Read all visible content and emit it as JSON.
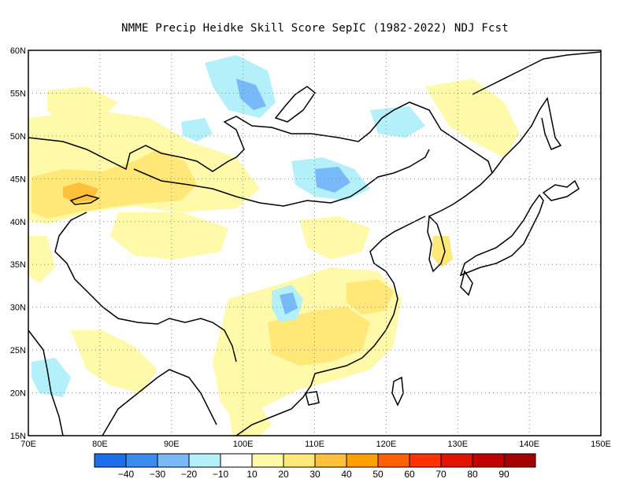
{
  "title": "NMME Precip Heidke Skill Score SepIC (1982-2022) NDJ Fcst",
  "map": {
    "lon_range": [
      70,
      150
    ],
    "lat_range": [
      15,
      60
    ],
    "lon_ticks": [
      "70E",
      "80E",
      "90E",
      "100E",
      "110E",
      "120E",
      "130E",
      "140E",
      "150E"
    ],
    "lat_ticks": [
      "15N",
      "20N",
      "25N",
      "30N",
      "35N",
      "40N",
      "45N",
      "50N",
      "55N",
      "60N"
    ],
    "grid": "dotted"
  },
  "colorbar": {
    "labels": [
      "-40",
      "-30",
      "-20",
      "-10",
      "10",
      "20",
      "30",
      "40",
      "50",
      "60",
      "70",
      "80",
      "90"
    ],
    "colors": [
      "#1e6eeb",
      "#3c8cf0",
      "#78b9fa",
      "#b4f0fa",
      "#ffffff",
      "#fffaaa",
      "#ffe878",
      "#ffc03c",
      "#ffa000",
      "#ff6000",
      "#ff3200",
      "#e11400",
      "#c00000",
      "#a50000"
    ]
  },
  "regions": {
    "yellow": "#fffaaa",
    "gold": "#ffe878",
    "orange": "#ffc03c",
    "lightblue": "#b4f0fa",
    "blue": "#78b9fa",
    "deepblue": "#3c8cf0"
  }
}
